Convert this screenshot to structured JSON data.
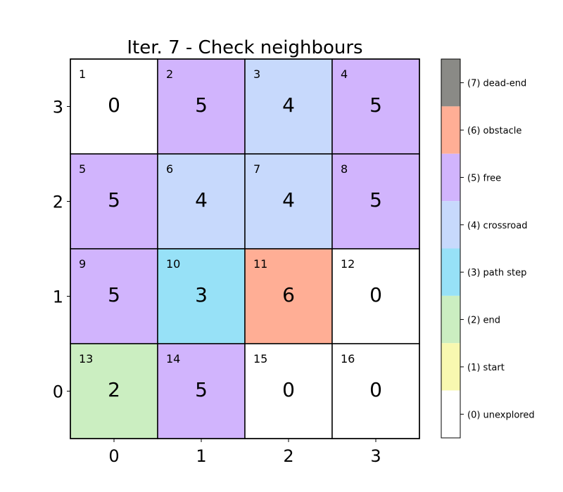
{
  "chart_data": {
    "type": "heatmap",
    "title": "Iter. 7 - Check neighbours",
    "x_ticks": [
      "0",
      "1",
      "2",
      "3"
    ],
    "y_ticks": [
      "0",
      "1",
      "2",
      "3"
    ],
    "grid": {
      "rows": [
        {
          "y": 3,
          "cells": [
            {
              "index": "1",
              "value": 0
            },
            {
              "index": "2",
              "value": 5
            },
            {
              "index": "3",
              "value": 4
            },
            {
              "index": "4",
              "value": 5
            }
          ]
        },
        {
          "y": 2,
          "cells": [
            {
              "index": "5",
              "value": 5
            },
            {
              "index": "6",
              "value": 4
            },
            {
              "index": "7",
              "value": 4
            },
            {
              "index": "8",
              "value": 5
            }
          ]
        },
        {
          "y": 1,
          "cells": [
            {
              "index": "9",
              "value": 5
            },
            {
              "index": "10",
              "value": 3
            },
            {
              "index": "11",
              "value": 6
            },
            {
              "index": "12",
              "value": 0
            }
          ]
        },
        {
          "y": 0,
          "cells": [
            {
              "index": "13",
              "value": 2
            },
            {
              "index": "14",
              "value": 5
            },
            {
              "index": "15",
              "value": 0
            },
            {
              "index": "16",
              "value": 0
            }
          ]
        }
      ]
    },
    "colorbar": [
      {
        "value": 7,
        "label": "(7) dead-end",
        "color": "#8a8a86"
      },
      {
        "value": 6,
        "label": "(6) obstacle",
        "color": "#ffae95"
      },
      {
        "value": 5,
        "label": "(5) free",
        "color": "#d1b4fd"
      },
      {
        "value": 4,
        "label": "(4) crossroad",
        "color": "#c7d9fc"
      },
      {
        "value": 3,
        "label": "(3) path step",
        "color": "#97e1f7"
      },
      {
        "value": 2,
        "label": "(2) end",
        "color": "#cbeec1"
      },
      {
        "value": 1,
        "label": "(1) start",
        "color": "#f8f8b0"
      },
      {
        "value": 0,
        "label": "(0) unexplored",
        "color": "#ffffff"
      }
    ],
    "legend_position": "right"
  }
}
